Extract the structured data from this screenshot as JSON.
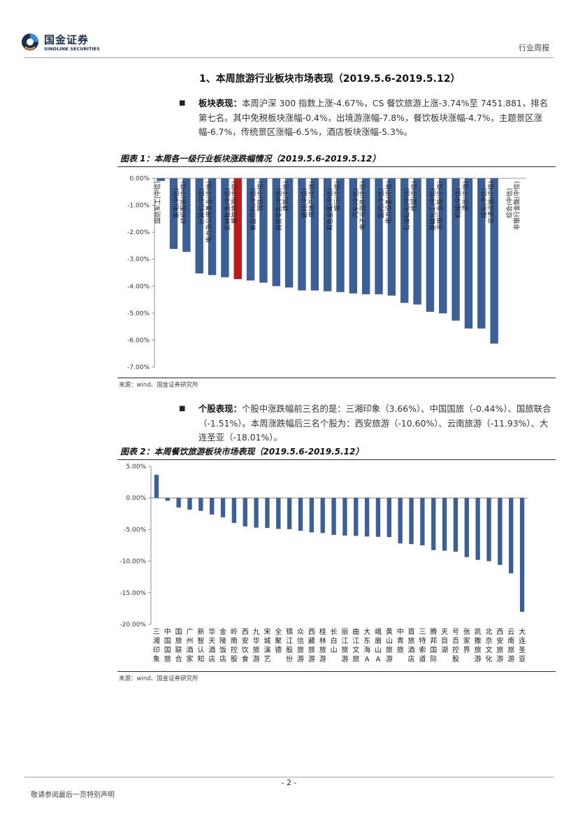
{
  "header": {
    "logo_cn": "国金证券",
    "logo_en": "SINOLINK SECURITIES",
    "report_type": "行业周报"
  },
  "section": {
    "title": "1、本周旅游行业板块市场表现（2019.5.6-2019.5.12）"
  },
  "paragraph1": {
    "lead": "板块表现：",
    "text": "本周沪深 300 指数上涨-4.67%，CS 餐饮旅游上涨-3.74%至 7451.881，排名第七名。其中免税板块涨幅-0.4%，出境游涨幅-7.8%，餐饮板块涨幅-4.7%，主题景区涨幅-6.7%，传统景区涨幅-6.5%，酒店板块涨幅-5.3%。"
  },
  "figure1": {
    "title": "图表 1：本周各一级行业板块涨跌幅情况（2019.5.6-2019.5.12）",
    "source": "来源：wind、国金证券研究所"
  },
  "paragraph2": {
    "lead": "个股表现：",
    "text": "个股中涨跌幅前三名的是：三湘印象（3.66%）、中国国旅（-0.44%）、国旅联合（-1.51%）。本周涨跌幅后三名个股为：西安旅游（-10.60%）、云南旅游（-11.93%）、大连圣亚（-18.01%）。"
  },
  "figure2": {
    "title": "图表 2：本周餐饮旅游板块市场表现（2019.5.6-2019.5.12）",
    "source": "来源：wind、国金证券研究所"
  },
  "footer": {
    "page": "- 2 -",
    "disclaimer": "敬请参阅最后一页特别声明"
  },
  "colors": {
    "bar": "#3b5f97",
    "highlight": "#c0191b",
    "brand": "#1a2d4f"
  },
  "chart_data": [
    {
      "type": "bar",
      "title": "本周各一级行业板块涨跌幅情况（2019.5.6-2019.5.12）",
      "categories": [
        "国防军工(中信)",
        "家电(中信)",
        "纺织服装(中信)",
        "计算机(中信)",
        "电力及公用事业(中信)",
        "农林牧渔(中信)",
        "餐饮旅游(中信)",
        "食品饮料(中信)",
        "钢铁(中信)",
        "商贸零售(中信)",
        "建筑(中信)",
        "建材(中信)",
        "房地产(中信)",
        "有色金属(中信)",
        "银行(中信)",
        "汽车(中信)",
        "电子元器件(中信)",
        "医药(中信)",
        "电力设备(中信)",
        "石油石化(中信)",
        "传媒(中信)",
        "基础化工(中信)",
        "非银行金融(中信)",
        "机械(中信)",
        "通信(中信)",
        "煤炭(中信)",
        "交通运输(中信)",
        "综合(中信)",
        "非银行金融(中信)"
      ],
      "values": [
        -0.1,
        -2.62,
        -2.73,
        -3.53,
        -3.59,
        -3.67,
        -3.74,
        -3.79,
        -3.87,
        -4.0,
        -4.05,
        -4.16,
        -4.16,
        -4.19,
        -4.22,
        -4.27,
        -4.3,
        -4.3,
        -4.35,
        -4.62,
        -4.68,
        -4.95,
        -5.01,
        -5.28,
        -5.57,
        -5.57,
        -6.13,
        null,
        null
      ],
      "highlight_index": 6,
      "yticks": [
        "0.00%",
        "-1.00%",
        "-2.00%",
        "-3.00%",
        "-4.00%",
        "-5.00%",
        "-6.00%",
        "-7.00%"
      ],
      "ylim": [
        -7,
        0
      ],
      "unit": "%"
    },
    {
      "type": "bar",
      "title": "本周餐饮旅游板块市场表现（2019.5.6-2019.5.12）",
      "categories": [
        "三湘印象",
        "中国国旅",
        "国旅联合",
        "广州酒家",
        "新智认知",
        "华天酒店",
        "金陵饭店",
        "岭南控股",
        "西安饮食",
        "九华旅游",
        "宋城演艺",
        "全聚德",
        "锦江股份",
        "众信旅游",
        "西藏旅游",
        "桂林旅游",
        "长白山",
        "丽江旅游",
        "曲江文旅",
        "大东海A",
        "峨眉山A",
        "黄山旅游",
        "中青旅",
        "首旅酒店",
        "三特索道",
        "腾邦国际",
        "天目湖",
        "号百控股",
        "张家界",
        "凯撒旅游",
        "北京文化",
        "西安旅游",
        "云南旅游",
        "大连圣亚"
      ],
      "values": [
        3.66,
        -0.44,
        -1.51,
        -1.85,
        -2.05,
        -2.62,
        -3.05,
        -3.95,
        -4.5,
        -4.7,
        -4.75,
        -4.9,
        -4.95,
        -5.2,
        -5.45,
        -5.55,
        -5.85,
        -5.95,
        -6.0,
        -6.1,
        -6.15,
        -6.2,
        -7.2,
        -7.3,
        -7.5,
        -8.25,
        -8.35,
        -8.5,
        -9.35,
        -9.8,
        -10.0,
        -10.6,
        -11.93,
        -18.01
      ],
      "yticks": [
        "5.00%",
        "0.00%",
        "-5.00%",
        "-10.00%",
        "-15.00%",
        "-20.00%"
      ],
      "ylim": [
        -20,
        5
      ],
      "unit": "%"
    }
  ]
}
